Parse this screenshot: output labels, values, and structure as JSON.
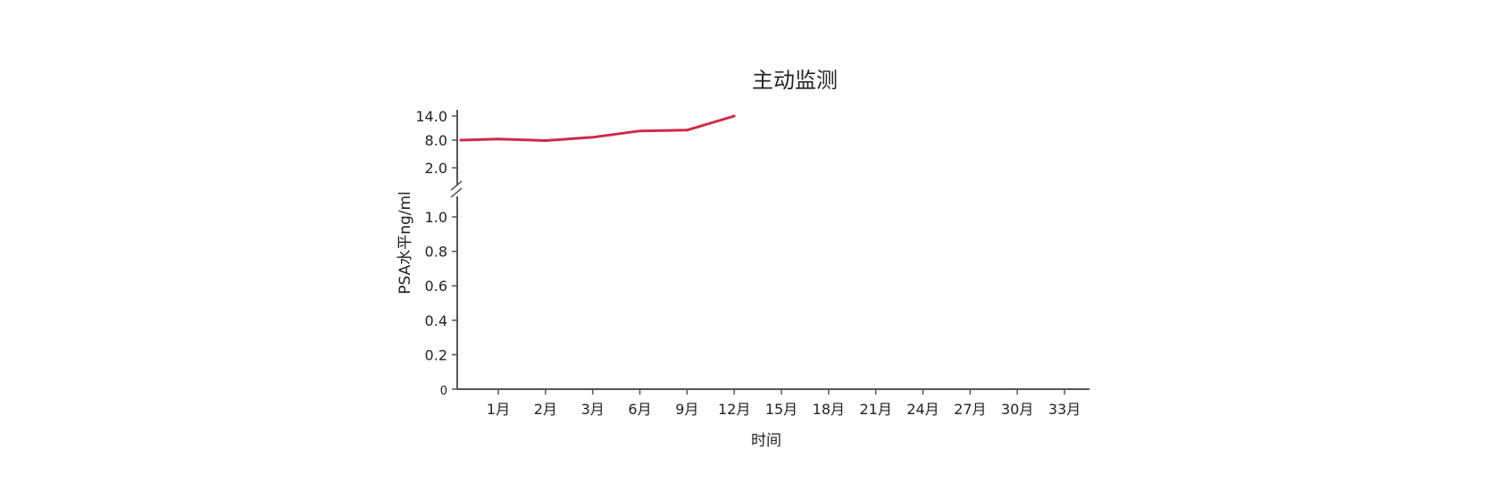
{
  "chart_data": {
    "type": "line",
    "title": "主动监测",
    "xlabel": "时间",
    "ylabel": "PSA水平ng/ml",
    "categories": [
      "1月",
      "2月",
      "3月",
      "6月",
      "9月",
      "12月",
      "15月",
      "18月",
      "21月",
      "24月",
      "27月",
      "30月",
      "33月"
    ],
    "y_axis": {
      "broken": true,
      "upper_segment": {
        "ticks": [
          "14.0",
          "8.0",
          "2.0"
        ],
        "range": [
          0,
          14
        ]
      },
      "lower_segment": {
        "ticks": [
          "0",
          "0.2",
          "0.4",
          "0.6",
          "0.8",
          "1.0"
        ],
        "range": [
          0,
          1.0
        ]
      }
    },
    "series": [
      {
        "color": "#d0294b",
        "points": [
          {
            "x": "0",
            "y": 8.0
          },
          {
            "x": "1月",
            "y": 8.3
          },
          {
            "x": "2月",
            "y": 7.9
          },
          {
            "x": "3月",
            "y": 8.7
          },
          {
            "x": "6月",
            "y": 10.3
          },
          {
            "x": "9月",
            "y": 10.5
          },
          {
            "x": "12月",
            "y": 14.0
          }
        ]
      }
    ],
    "grid": false,
    "legend": "none"
  }
}
